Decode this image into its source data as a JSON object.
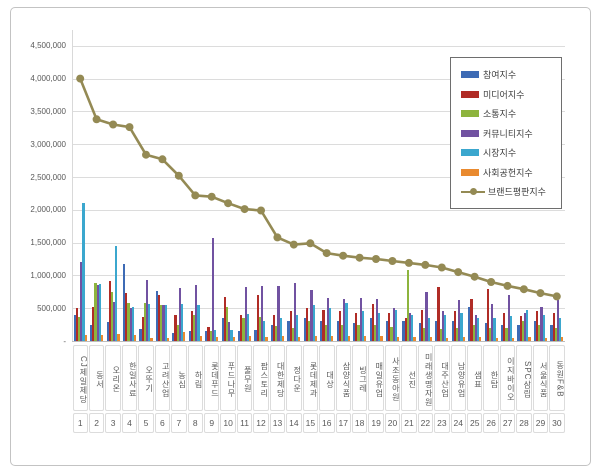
{
  "chart_data": {
    "type": "bar",
    "subtype": "grouped-bars-with-line-overlay",
    "title": "",
    "xlabel": "",
    "ylabel": "",
    "grid": true,
    "legend_position": "top-right",
    "y_axis": {
      "min": 0,
      "max": 4740000,
      "tick_step": 500000,
      "ticks": [
        {
          "label": "4,500,000",
          "value": 4500000
        },
        {
          "label": "4,000,000",
          "value": 4000000
        },
        {
          "label": "3,500,000",
          "value": 3500000
        },
        {
          "label": "3,000,000",
          "value": 3000000
        },
        {
          "label": "2,500,000",
          "value": 2500000
        },
        {
          "label": "2,000,000",
          "value": 2000000
        },
        {
          "label": "1,500,000",
          "value": 1500000
        },
        {
          "label": "1,000,000",
          "value": 1000000
        },
        {
          "label": "500,000",
          "value": 500000
        },
        {
          "label": "-",
          "value": 0
        }
      ]
    },
    "categories": [
      "CJ제일제당",
      "동서",
      "오리온",
      "한일사료",
      "오뚜기",
      "고려산업",
      "농심",
      "하림",
      "롯데푸드",
      "푸드나무",
      "풀무원",
      "팜스토리",
      "대한제당",
      "정다운",
      "롯데제과",
      "대상",
      "삼양식품",
      "빙그레",
      "매일유업",
      "사조동아원",
      "선진",
      "미래생명자원",
      "대주산업",
      "남양유업",
      "샘표",
      "한탑",
      "이지바이오",
      "SPC삼립",
      "서울식품",
      "동원F&B"
    ],
    "category_numbers": [
      "1",
      "2",
      "3",
      "4",
      "5",
      "6",
      "7",
      "8",
      "9",
      "10",
      "11",
      "12",
      "13",
      "14",
      "15",
      "16",
      "17",
      "18",
      "19",
      "20",
      "21",
      "22",
      "23",
      "24",
      "25",
      "26",
      "27",
      "28",
      "29",
      "30"
    ],
    "series": [
      {
        "name": "참여지수",
        "type": "bar",
        "color": "#3E6BB5",
        "values": [
          400000,
          250000,
          290000,
          1170000,
          190000,
          755000,
          120000,
          160000,
          150000,
          350000,
          160000,
          170000,
          250000,
          300000,
          350000,
          300000,
          300000,
          280000,
          350000,
          300000,
          300000,
          280000,
          300000,
          300000,
          520000,
          280000,
          250000,
          250000,
          300000,
          250000
        ]
      },
      {
        "name": "미디어지수",
        "type": "bar",
        "color": "#B02C26",
        "values": [
          500000,
          520000,
          920000,
          730000,
          370000,
          700000,
          395000,
          450000,
          220000,
          675000,
          395000,
          700000,
          400000,
          450000,
          500000,
          480000,
          450000,
          430000,
          560000,
          420000,
          350000,
          480000,
          830000,
          450000,
          640000,
          790000,
          420000,
          380000,
          450000,
          430000
        ]
      },
      {
        "name": "소통지수",
        "type": "bar",
        "color": "#8DB43E",
        "values": [
          370000,
          880000,
          750000,
          575000,
          575000,
          550000,
          245000,
          400000,
          160000,
          520000,
          350000,
          365000,
          230000,
          200000,
          300000,
          250000,
          250000,
          250000,
          250000,
          220000,
          1080000,
          200000,
          180000,
          200000,
          250000,
          200000,
          200000,
          300000,
          250000,
          200000
        ]
      },
      {
        "name": "커뮤니티지수",
        "type": "bar",
        "color": "#7152A1",
        "values": [
          1200000,
          860000,
          600000,
          510000,
          930000,
          545000,
          810000,
          855000,
          1570000,
          295000,
          820000,
          840000,
          840000,
          880000,
          780000,
          650000,
          640000,
          660000,
          640000,
          500000,
          420000,
          750000,
          450000,
          630000,
          400000,
          560000,
          700000,
          420000,
          520000,
          620000
        ]
      },
      {
        "name": "시장지수",
        "type": "bar",
        "color": "#3BA7CE",
        "values": [
          2100000,
          870000,
          1450000,
          525000,
          560000,
          545000,
          560000,
          545000,
          175000,
          170000,
          410000,
          300000,
          350000,
          400000,
          550000,
          500000,
          580000,
          450000,
          420000,
          480000,
          400000,
          350000,
          400000,
          420000,
          350000,
          350000,
          380000,
          480000,
          400000,
          350000
        ]
      },
      {
        "name": "사회공헌지수",
        "type": "bar",
        "color": "#E98A2F",
        "values": [
          90000,
          95000,
          100000,
          90000,
          50000,
          50000,
          130000,
          80000,
          60000,
          60000,
          70000,
          60000,
          70000,
          60000,
          80000,
          70000,
          70000,
          70000,
          70000,
          60000,
          60000,
          60000,
          50000,
          60000,
          60000,
          50000,
          50000,
          60000,
          50000,
          60000
        ]
      },
      {
        "name": "브랜드평판지수",
        "type": "line",
        "color": "#948A54",
        "values": [
          4000000,
          3380000,
          3300000,
          3260000,
          2840000,
          2770000,
          2520000,
          2220000,
          2200000,
          2100000,
          2010000,
          1990000,
          1580000,
          1470000,
          1490000,
          1340000,
          1300000,
          1270000,
          1250000,
          1220000,
          1190000,
          1160000,
          1120000,
          1050000,
          980000,
          900000,
          840000,
          790000,
          730000,
          680000
        ]
      }
    ]
  }
}
